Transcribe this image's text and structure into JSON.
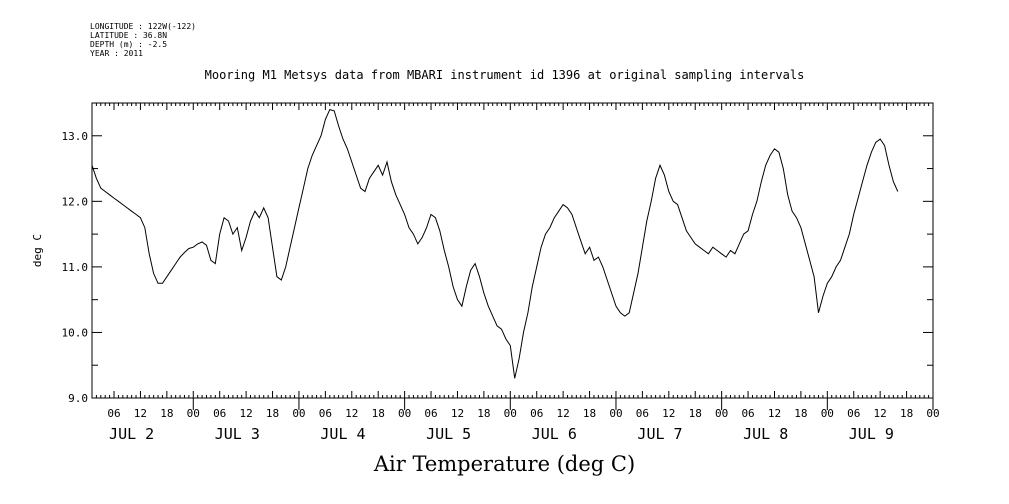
{
  "header": {
    "longitude": "LONGITUDE : 122W(-122)",
    "latitude": "LATITUDE : 36.8N",
    "depth": "DEPTH (m) : -2.5",
    "year": "YEAR : 2011",
    "title": "Mooring M1 Metsys data from MBARI instrument id 1396 at original sampling intervals"
  },
  "chart_data": {
    "type": "line",
    "title": "Mooring M1 Metsys data from MBARI instrument id 1396 at original sampling intervals",
    "xlabel": "Air Temperature (deg C)",
    "ylabel": "deg C",
    "ylim": [
      9.0,
      13.5
    ],
    "yticks": [
      9.0,
      10.0,
      11.0,
      12.0,
      13.0
    ],
    "ytick_labels": [
      "9.0",
      "10.0",
      "11.0",
      "12.0",
      "13.0"
    ],
    "x_units": "hours since JUL 1 00:00",
    "xlim": [
      1,
      192
    ],
    "hour_ticks": [
      {
        "h": 6,
        "label": "06"
      },
      {
        "h": 12,
        "label": "12"
      },
      {
        "h": 18,
        "label": "18"
      },
      {
        "h": 24,
        "label": "00"
      },
      {
        "h": 30,
        "label": "06"
      },
      {
        "h": 36,
        "label": "12"
      },
      {
        "h": 42,
        "label": "18"
      },
      {
        "h": 48,
        "label": "00"
      },
      {
        "h": 54,
        "label": "06"
      },
      {
        "h": 60,
        "label": "12"
      },
      {
        "h": 66,
        "label": "18"
      },
      {
        "h": 72,
        "label": "00"
      },
      {
        "h": 78,
        "label": "06"
      },
      {
        "h": 84,
        "label": "12"
      },
      {
        "h": 90,
        "label": "18"
      },
      {
        "h": 96,
        "label": "00"
      },
      {
        "h": 102,
        "label": "06"
      },
      {
        "h": 108,
        "label": "12"
      },
      {
        "h": 114,
        "label": "18"
      },
      {
        "h": 120,
        "label": "00"
      },
      {
        "h": 126,
        "label": "06"
      },
      {
        "h": 132,
        "label": "12"
      },
      {
        "h": 138,
        "label": "18"
      },
      {
        "h": 144,
        "label": "00"
      },
      {
        "h": 150,
        "label": "06"
      },
      {
        "h": 156,
        "label": "12"
      },
      {
        "h": 162,
        "label": "18"
      },
      {
        "h": 168,
        "label": "00"
      },
      {
        "h": 174,
        "label": "06"
      },
      {
        "h": 180,
        "label": "12"
      },
      {
        "h": 186,
        "label": "18"
      },
      {
        "h": 192,
        "label": "00"
      }
    ],
    "day_labels": [
      {
        "h": 10,
        "label": "JUL  2"
      },
      {
        "h": 34,
        "label": "JUL  3"
      },
      {
        "h": 58,
        "label": "JUL  4"
      },
      {
        "h": 82,
        "label": "JUL  5"
      },
      {
        "h": 106,
        "label": "JUL  6"
      },
      {
        "h": 130,
        "label": "JUL  7"
      },
      {
        "h": 154,
        "label": "JUL  8"
      },
      {
        "h": 178,
        "label": "JUL  9"
      }
    ],
    "series": [
      {
        "values": [
          [
            1,
            12.55
          ],
          [
            2,
            12.35
          ],
          [
            3,
            12.2
          ],
          [
            4,
            12.15
          ],
          [
            5,
            12.1
          ],
          [
            6,
            12.05
          ],
          [
            7,
            12.0
          ],
          [
            8,
            11.95
          ],
          [
            9,
            11.9
          ],
          [
            10,
            11.85
          ],
          [
            11,
            11.8
          ],
          [
            12,
            11.75
          ],
          [
            13,
            11.6
          ],
          [
            14,
            11.2
          ],
          [
            15,
            10.9
          ],
          [
            16,
            10.75
          ],
          [
            17,
            10.75
          ],
          [
            18,
            10.85
          ],
          [
            19,
            10.95
          ],
          [
            20,
            11.05
          ],
          [
            21,
            11.15
          ],
          [
            22,
            11.22
          ],
          [
            23,
            11.28
          ],
          [
            24,
            11.3
          ],
          [
            25,
            11.35
          ],
          [
            26,
            11.38
          ],
          [
            27,
            11.33
          ],
          [
            28,
            11.1
          ],
          [
            29,
            11.05
          ],
          [
            30,
            11.5
          ],
          [
            31,
            11.75
          ],
          [
            32,
            11.7
          ],
          [
            33,
            11.5
          ],
          [
            34,
            11.6
          ],
          [
            35,
            11.25
          ],
          [
            36,
            11.45
          ],
          [
            37,
            11.7
          ],
          [
            38,
            11.85
          ],
          [
            39,
            11.75
          ],
          [
            40,
            11.9
          ],
          [
            41,
            11.75
          ],
          [
            42,
            11.3
          ],
          [
            43,
            10.85
          ],
          [
            44,
            10.8
          ],
          [
            45,
            11.0
          ],
          [
            46,
            11.3
          ],
          [
            47,
            11.6
          ],
          [
            48,
            11.9
          ],
          [
            49,
            12.2
          ],
          [
            50,
            12.5
          ],
          [
            51,
            12.7
          ],
          [
            52,
            12.85
          ],
          [
            53,
            13.0
          ],
          [
            54,
            13.25
          ],
          [
            55,
            13.4
          ],
          [
            56,
            13.38
          ],
          [
            57,
            13.15
          ],
          [
            58,
            12.95
          ],
          [
            59,
            12.8
          ],
          [
            60,
            12.6
          ],
          [
            61,
            12.4
          ],
          [
            62,
            12.2
          ],
          [
            63,
            12.15
          ],
          [
            64,
            12.35
          ],
          [
            65,
            12.45
          ],
          [
            66,
            12.55
          ],
          [
            67,
            12.4
          ],
          [
            68,
            12.6
          ],
          [
            69,
            12.3
          ],
          [
            70,
            12.1
          ],
          [
            71,
            11.95
          ],
          [
            72,
            11.8
          ],
          [
            73,
            11.6
          ],
          [
            74,
            11.5
          ],
          [
            75,
            11.35
          ],
          [
            76,
            11.45
          ],
          [
            77,
            11.6
          ],
          [
            78,
            11.8
          ],
          [
            79,
            11.75
          ],
          [
            80,
            11.55
          ],
          [
            81,
            11.25
          ],
          [
            82,
            11.0
          ],
          [
            83,
            10.7
          ],
          [
            84,
            10.5
          ],
          [
            85,
            10.4
          ],
          [
            86,
            10.7
          ],
          [
            87,
            10.95
          ],
          [
            88,
            11.05
          ],
          [
            89,
            10.85
          ],
          [
            90,
            10.6
          ],
          [
            91,
            10.4
          ],
          [
            92,
            10.25
          ],
          [
            93,
            10.1
          ],
          [
            94,
            10.05
          ],
          [
            95,
            9.9
          ],
          [
            96,
            9.8
          ],
          [
            97,
            9.3
          ],
          [
            98,
            9.6
          ],
          [
            99,
            10.0
          ],
          [
            100,
            10.3
          ],
          [
            101,
            10.7
          ],
          [
            102,
            11.0
          ],
          [
            103,
            11.3
          ],
          [
            104,
            11.5
          ],
          [
            105,
            11.6
          ],
          [
            106,
            11.75
          ],
          [
            107,
            11.85
          ],
          [
            108,
            11.95
          ],
          [
            109,
            11.9
          ],
          [
            110,
            11.8
          ],
          [
            111,
            11.6
          ],
          [
            112,
            11.4
          ],
          [
            113,
            11.2
          ],
          [
            114,
            11.3
          ],
          [
            115,
            11.1
          ],
          [
            116,
            11.15
          ],
          [
            117,
            11.0
          ],
          [
            118,
            10.8
          ],
          [
            119,
            10.6
          ],
          [
            120,
            10.4
          ],
          [
            121,
            10.3
          ],
          [
            122,
            10.25
          ],
          [
            123,
            10.3
          ],
          [
            124,
            10.6
          ],
          [
            125,
            10.9
          ],
          [
            126,
            11.3
          ],
          [
            127,
            11.7
          ],
          [
            128,
            12.0
          ],
          [
            129,
            12.35
          ],
          [
            130,
            12.55
          ],
          [
            131,
            12.4
          ],
          [
            132,
            12.15
          ],
          [
            133,
            12.0
          ],
          [
            134,
            11.95
          ],
          [
            135,
            11.75
          ],
          [
            136,
            11.55
          ],
          [
            137,
            11.45
          ],
          [
            138,
            11.35
          ],
          [
            139,
            11.3
          ],
          [
            140,
            11.25
          ],
          [
            141,
            11.2
          ],
          [
            142,
            11.3
          ],
          [
            143,
            11.25
          ],
          [
            144,
            11.2
          ],
          [
            145,
            11.15
          ],
          [
            146,
            11.25
          ],
          [
            147,
            11.2
          ],
          [
            148,
            11.35
          ],
          [
            149,
            11.5
          ],
          [
            150,
            11.55
          ],
          [
            151,
            11.8
          ],
          [
            152,
            12.0
          ],
          [
            153,
            12.3
          ],
          [
            154,
            12.55
          ],
          [
            155,
            12.7
          ],
          [
            156,
            12.8
          ],
          [
            157,
            12.75
          ],
          [
            158,
            12.5
          ],
          [
            159,
            12.1
          ],
          [
            160,
            11.85
          ],
          [
            161,
            11.75
          ],
          [
            162,
            11.6
          ],
          [
            163,
            11.35
          ],
          [
            164,
            11.1
          ],
          [
            165,
            10.85
          ],
          [
            166,
            10.3
          ],
          [
            167,
            10.55
          ],
          [
            168,
            10.75
          ],
          [
            169,
            10.85
          ],
          [
            170,
            11.0
          ],
          [
            171,
            11.1
          ],
          [
            172,
            11.3
          ],
          [
            173,
            11.5
          ],
          [
            174,
            11.8
          ],
          [
            175,
            12.05
          ],
          [
            176,
            12.3
          ],
          [
            177,
            12.55
          ],
          [
            178,
            12.75
          ],
          [
            179,
            12.9
          ],
          [
            180,
            12.95
          ],
          [
            181,
            12.85
          ],
          [
            182,
            12.55
          ],
          [
            183,
            12.3
          ],
          [
            184,
            12.15
          ]
        ]
      }
    ]
  }
}
